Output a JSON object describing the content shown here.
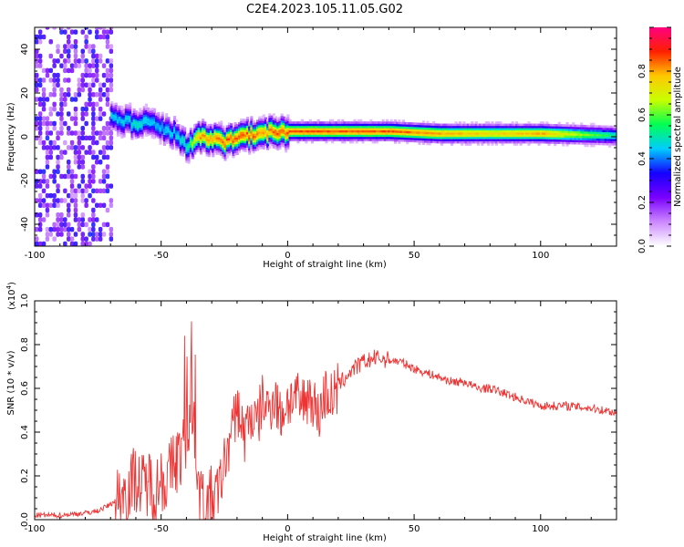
{
  "title": "C2E4.2023.105.11.05.G02",
  "chart_data": [
    {
      "type": "heatmap",
      "xlabel": "Height of straight line (km)",
      "ylabel": "Frequency (Hz)",
      "xlim": [
        -100,
        130
      ],
      "ylim": [
        -50,
        50
      ],
      "x_ticks": [
        -100,
        -50,
        0,
        50,
        100
      ],
      "y_ticks": [
        -40,
        -20,
        0,
        20,
        40
      ],
      "colorbar": {
        "label": "Normalized spectral amplitude",
        "range": [
          0.0,
          1.0
        ],
        "ticks": [
          0.0,
          0.2,
          0.4,
          0.6,
          0.8
        ],
        "colors": [
          "#ffffff",
          "#cc88ff",
          "#7a00ff",
          "#1500ff",
          "#00ccff",
          "#00ff55",
          "#c8ff00",
          "#ffc800",
          "#ff2000",
          "#ff0080"
        ]
      },
      "ridge": {
        "x": [
          -70,
          -65,
          -60,
          -55,
          -50,
          -45,
          -42,
          -40,
          -35,
          -30,
          -25,
          -20,
          -15,
          -10,
          -5,
          0,
          10,
          20,
          40,
          60,
          80,
          100,
          130
        ],
        "y": [
          8,
          7,
          5,
          6,
          3,
          1,
          -2,
          -5,
          0,
          -1,
          -3,
          -1,
          0,
          1,
          2,
          2,
          2,
          2,
          2,
          1,
          1,
          1,
          0
        ],
        "amplitude": [
          0.45,
          0.45,
          0.5,
          0.45,
          0.45,
          0.45,
          0.5,
          0.5,
          0.8,
          0.8,
          0.85,
          0.85,
          0.85,
          0.8,
          0.85,
          0.85,
          0.85,
          0.85,
          0.85,
          0.8,
          0.75,
          0.8,
          0.5
        ]
      },
      "noise_region": {
        "x": [
          -100,
          -70
        ],
        "amplitude": [
          0.1,
          0.35
        ]
      }
    },
    {
      "type": "line",
      "xlabel": "Height of straight line (km)",
      "ylabel": "SNR (10 * v/v)",
      "y_multiplier": "(x10",
      "y_multiplier_exp": "4",
      "y_multiplier_close": ")",
      "xlim": [
        -100,
        130
      ],
      "ylim": [
        0.0,
        1.0
      ],
      "x_ticks": [
        -100,
        -50,
        0,
        50,
        100
      ],
      "y_ticks": [
        0.0,
        0.2,
        0.4,
        0.6,
        0.8,
        1.0
      ],
      "y_tick_labels": [
        "0.0",
        "0.2",
        "0.4",
        "0.6",
        "0.8",
        "1.0"
      ],
      "series": [
        {
          "color": "#ee3333",
          "x": [
            -100,
            -90,
            -80,
            -75,
            -70,
            -65,
            -62,
            -60,
            -58,
            -55,
            -52,
            -50,
            -48,
            -45,
            -42,
            -40,
            -38,
            -37,
            -36,
            -35,
            -33,
            -30,
            -27,
            -25,
            -22,
            -20,
            -17,
            -15,
            -12,
            -10,
            -8,
            -5,
            -3,
            0,
            3,
            5,
            8,
            10,
            12,
            15,
            18,
            20,
            25,
            30,
            35,
            40,
            45,
            50,
            55,
            60,
            65,
            70,
            75,
            80,
            85,
            90,
            95,
            100,
            110,
            120,
            130
          ],
          "y": [
            0.02,
            0.02,
            0.03,
            0.04,
            0.07,
            0.12,
            0.16,
            0.2,
            0.14,
            0.18,
            0.13,
            0.2,
            0.17,
            0.26,
            0.3,
            0.38,
            0.5,
            0.45,
            0.3,
            0.12,
            0.05,
            0.09,
            0.14,
            0.26,
            0.4,
            0.52,
            0.38,
            0.48,
            0.43,
            0.55,
            0.5,
            0.57,
            0.47,
            0.54,
            0.56,
            0.52,
            0.57,
            0.55,
            0.47,
            0.58,
            0.55,
            0.61,
            0.68,
            0.72,
            0.74,
            0.73,
            0.72,
            0.69,
            0.67,
            0.65,
            0.63,
            0.63,
            0.6,
            0.6,
            0.58,
            0.56,
            0.54,
            0.52,
            0.52,
            0.51,
            0.49
          ]
        }
      ]
    }
  ]
}
